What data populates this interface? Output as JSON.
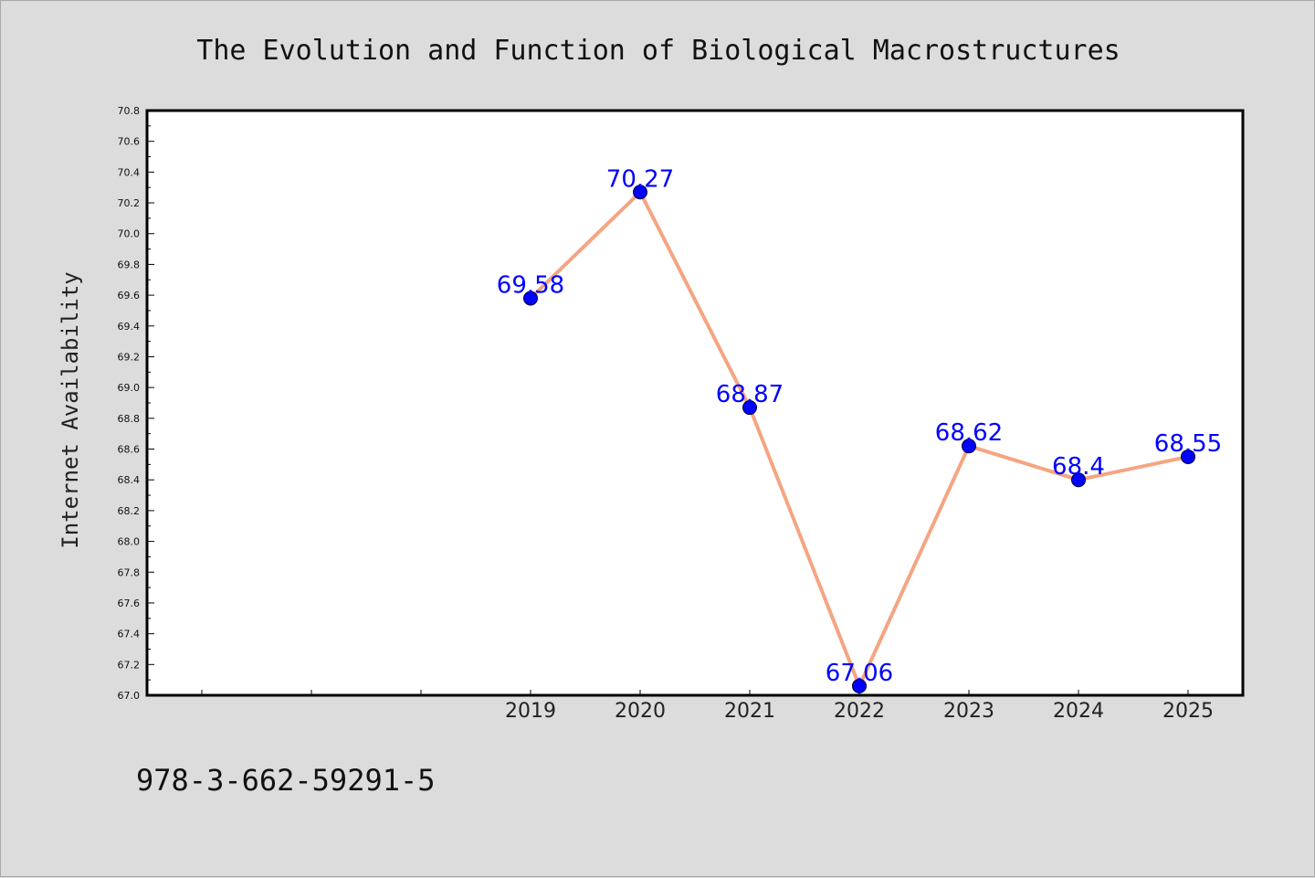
{
  "chart_data": {
    "type": "line",
    "title": "The Evolution and Function of Biological Macrostructures",
    "xlabel": "",
    "ylabel": "Internet Availability",
    "categories": [
      "2019",
      "2020",
      "2021",
      "2022",
      "2023",
      "2024",
      "2025"
    ],
    "x_slots_before_data": 3,
    "series": [
      {
        "values": [
          69.58,
          70.27,
          68.87,
          67.06,
          68.62,
          68.4,
          68.55
        ],
        "data_labels": [
          "69.58",
          "70.27",
          "68.87",
          "67.06",
          "68.62",
          "68.4",
          "68.55"
        ],
        "line_color": "#f4a582",
        "marker_color": "#0000ff"
      }
    ],
    "ylim": [
      67.0,
      70.8
    ],
    "y_ticks": [
      "67.0",
      "67.2",
      "67.4",
      "67.6",
      "67.8",
      "68.0",
      "68.2",
      "68.4",
      "68.6",
      "68.8",
      "69.0",
      "69.2",
      "69.4",
      "69.6",
      "69.8",
      "70.0",
      "70.2",
      "70.4",
      "70.6",
      "70.8"
    ],
    "grid": false,
    "legend": "none"
  },
  "footer_text": "978-3-662-59291-5",
  "colors": {
    "background": "#dcdcdc",
    "plot_background": "#ffffff",
    "line": "#f4a582",
    "marker": "#0000ff",
    "data_label": "#0000ff"
  }
}
